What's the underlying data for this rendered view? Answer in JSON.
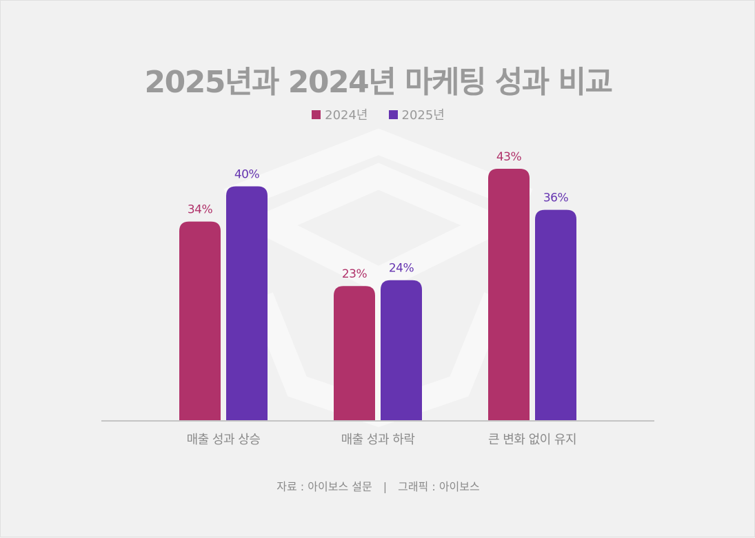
{
  "title": "2025년과 2024년 마케팅 성과 비교",
  "legend": [
    {
      "label": "2024년",
      "color": "#b0326a"
    },
    {
      "label": "2025년",
      "color": "#6534b0"
    }
  ],
  "chart_data": {
    "type": "bar",
    "title": "2025년과 2024년 마케팅 성과 비교",
    "categories": [
      "매출 성과 상승",
      "매출 성과 하락",
      "큰 변화 없이 유지"
    ],
    "series": [
      {
        "name": "2024년",
        "values": [
          34,
          23,
          43
        ],
        "color": "#b0326a"
      },
      {
        "name": "2025년",
        "values": [
          40,
          24,
          36
        ],
        "color": "#6534b0"
      }
    ],
    "value_suffix": "%",
    "xlabel": "",
    "ylabel": "",
    "ylim": [
      0,
      43
    ],
    "grid": false,
    "legend_position": "top-center"
  },
  "source": {
    "left": "자료 : 아이보스 설문",
    "divider": "|",
    "right": "그래픽 : 아이보스"
  }
}
